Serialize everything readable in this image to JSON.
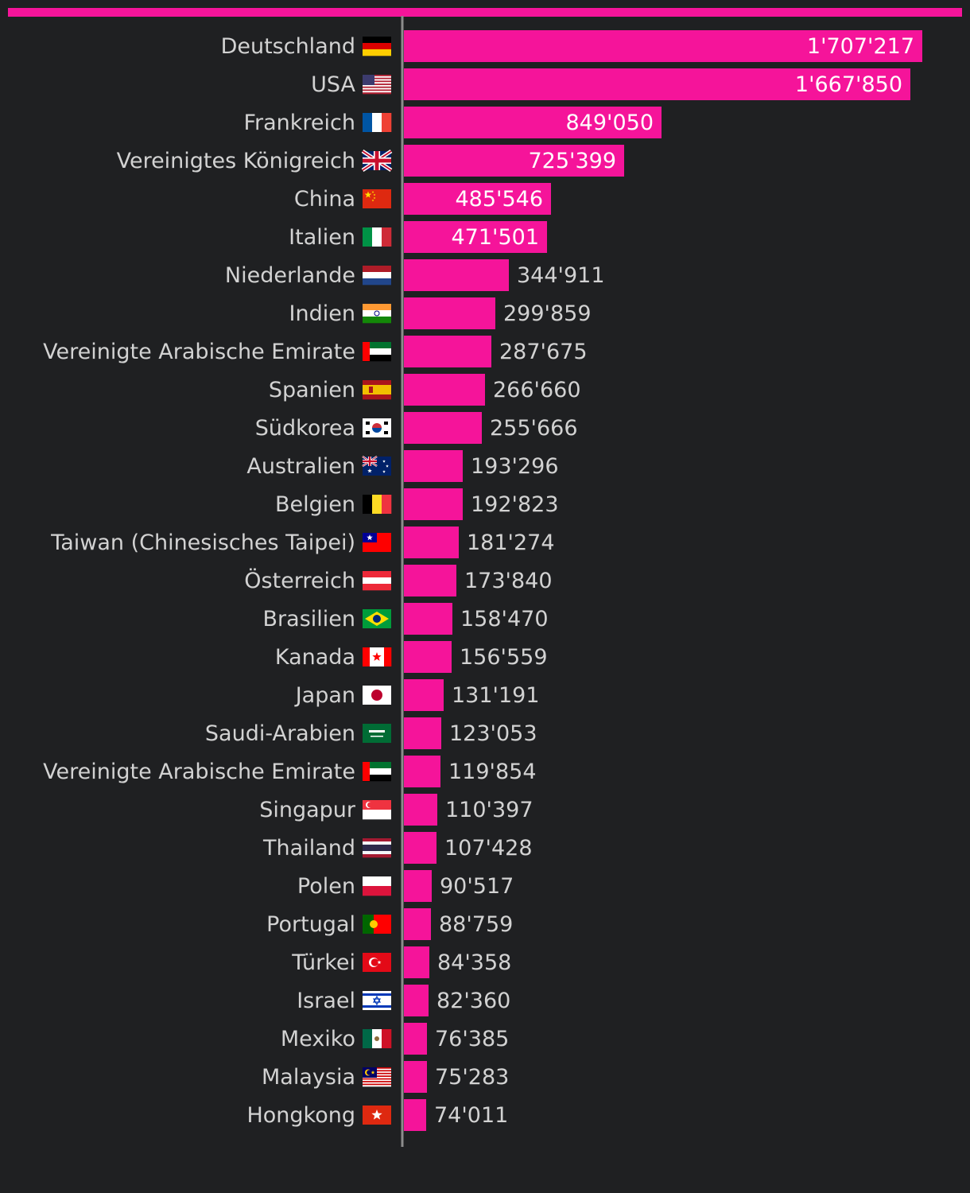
{
  "chart_data": {
    "type": "bar",
    "orientation": "horizontal",
    "title": "",
    "xlabel": "",
    "ylabel": "",
    "grid": false,
    "legend": "none",
    "xlim": [
      0,
      1800000
    ],
    "categories": [
      "Deutschland",
      "USA",
      "Frankreich",
      "Vereinigtes Königreich",
      "China",
      "Italien",
      "Niederlande",
      "Indien",
      "Vereinigte Arabische Emirate",
      "Spanien",
      "Südkorea",
      "Australien",
      "Belgien",
      "Taiwan (Chinesisches Taipei)",
      "Österreich",
      "Brasilien",
      "Kanada",
      "Japan",
      "Saudi-Arabien",
      "Vereinigte Arabische Emirate",
      "Singapur",
      "Thailand",
      "Polen",
      "Portugal",
      "Türkei",
      "Israel",
      "Mexiko",
      "Malaysia",
      "Hongkong"
    ],
    "flags": [
      "de-flag-icon",
      "us-flag-icon",
      "fr-flag-icon",
      "gb-flag-icon",
      "cn-flag-icon",
      "it-flag-icon",
      "nl-flag-icon",
      "in-flag-icon",
      "ae-flag-icon",
      "es-flag-icon",
      "kr-flag-icon",
      "au-flag-icon",
      "be-flag-icon",
      "tw-flag-icon",
      "at-flag-icon",
      "br-flag-icon",
      "ca-flag-icon",
      "jp-flag-icon",
      "sa-flag-icon",
      "ae-flag-icon",
      "sg-flag-icon",
      "th-flag-icon",
      "pl-flag-icon",
      "pt-flag-icon",
      "tr-flag-icon",
      "il-flag-icon",
      "mx-flag-icon",
      "my-flag-icon",
      "hk-flag-icon"
    ],
    "values": [
      1707217,
      1667850,
      849050,
      725399,
      485546,
      471501,
      344911,
      299859,
      287675,
      266660,
      255666,
      193296,
      192823,
      181274,
      173840,
      158470,
      156559,
      131191,
      123053,
      119854,
      110397,
      107428,
      90517,
      88759,
      84358,
      82360,
      76385,
      75283,
      74011
    ],
    "value_labels": [
      "1'707'217",
      "1'667'850",
      "849'050",
      "725'399",
      "485'546",
      "471'501",
      "344'911",
      "299'859",
      "287'675",
      "266'660",
      "255'666",
      "193'296",
      "192'823",
      "181'274",
      "173'840",
      "158'470",
      "156'559",
      "131'191",
      "123'053",
      "119'854",
      "110'397",
      "107'428",
      "90'517",
      "88'759",
      "84'358",
      "82'360",
      "76'385",
      "75'283",
      "74'011"
    ]
  },
  "colors": {
    "background": "#1f2022",
    "bar": "#f5149a",
    "axis": "#8c8c8c",
    "label_text": "#d2d2d2",
    "value_inside": "#ffffff",
    "value_outside": "#d2d2d2"
  }
}
